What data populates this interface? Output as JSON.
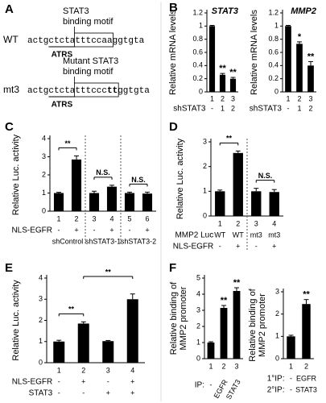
{
  "panel_labels": [
    "A",
    "B",
    "C",
    "D",
    "E",
    "F"
  ],
  "panel_a": {
    "sequences": [
      {
        "label": "WT",
        "motif_label": [
          "STAT3",
          "binding motif"
        ],
        "parts": [
          "actgctcta",
          "tttccaa",
          "ggtgta"
        ],
        "atrs": "ATRS"
      },
      {
        "label": "mt3",
        "motif_label": [
          "Mutant STAT3",
          "binding motif"
        ],
        "parts": [
          "actgctcta",
          "tttccc",
          "tt",
          "ggtgta"
        ],
        "atrs": "ATRS"
      }
    ]
  },
  "chart_data": [
    {
      "type": "bar",
      "title": "STAT3",
      "y_label": [
        "Relative mRNA levels"
      ],
      "categories": [
        "1",
        "2",
        "3"
      ],
      "values": [
        1,
        0.26,
        0.2
      ],
      "errors": [
        0.01,
        0.02,
        0.02
      ],
      "significance": [
        null,
        "**",
        "**"
      ],
      "rows": [
        {
          "label": "shSTAT3",
          "values": [
            "-",
            "1",
            "2"
          ]
        }
      ],
      "ylim": [
        0,
        1.2
      ],
      "yticks": [
        0,
        0.2,
        0.4,
        0.6,
        0.8,
        1,
        1.2
      ],
      "color": "#000000"
    },
    {
      "type": "bar",
      "title": "MMP2",
      "y_label": [
        "Relative mRNA levels"
      ],
      "categories": [
        "1",
        "2",
        "3"
      ],
      "values": [
        1,
        0.73,
        0.4
      ],
      "errors": [
        0.01,
        0.03,
        0.06
      ],
      "significance": [
        null,
        "*",
        "**"
      ],
      "rows": [
        {
          "label": "shSTAT3",
          "values": [
            "-",
            "1",
            "2"
          ]
        }
      ],
      "ylim": [
        0,
        1.2
      ],
      "yticks": [
        0,
        0.2,
        0.4,
        0.6,
        0.8,
        1,
        1.2
      ],
      "color": "#000000"
    },
    {
      "type": "bar",
      "y_label": [
        "Relative Luc. activity"
      ],
      "categories": [
        "1",
        "2",
        "3",
        "4",
        "5",
        "6"
      ],
      "values": [
        1,
        2.85,
        1,
        1.35,
        1,
        0.97
      ],
      "errors": [
        0.04,
        0.2,
        0.1,
        0.08,
        0.05,
        0.08
      ],
      "rows": [
        {
          "label": "NLS-EGFR",
          "values": [
            "-",
            "+",
            "-",
            "+",
            "-",
            "+"
          ]
        }
      ],
      "groups": [
        "shControl",
        "shSTAT3-1",
        "shSTAT3-2"
      ],
      "comparisons": [
        "**",
        "N.S.",
        "N.S."
      ],
      "ylim": [
        0,
        4
      ],
      "yticks": [
        0,
        1,
        2,
        3,
        4
      ],
      "color": "#000000"
    },
    {
      "type": "bar",
      "y_label": [
        "Relative Luc. activity"
      ],
      "categories": [
        "1",
        "2",
        "3",
        "4"
      ],
      "values": [
        1,
        2.55,
        1,
        0.97
      ],
      "errors": [
        0.05,
        0.08,
        0.12,
        0.1
      ],
      "rows": [
        {
          "label": "MMP2 Luc",
          "values": [
            "WT",
            "WT",
            "mt3",
            "mt3"
          ]
        },
        {
          "label": "NLS-EGFR",
          "values": [
            "-",
            "+",
            "-",
            "+"
          ]
        }
      ],
      "comparisons": [
        "**",
        "N.S."
      ],
      "ylim": [
        0,
        3
      ],
      "yticks": [
        0,
        1,
        2,
        3
      ],
      "color": "#000000"
    },
    {
      "type": "bar",
      "y_label": [
        "Relative Luc. activity"
      ],
      "categories": [
        "1",
        "2",
        "3",
        "4"
      ],
      "values": [
        1,
        1.85,
        1.02,
        3.0
      ],
      "errors": [
        0.06,
        0.08,
        0.03,
        0.25
      ],
      "rows": [
        {
          "label": "NLS-EGFR",
          "values": [
            "-",
            "+",
            "-",
            "+"
          ]
        },
        {
          "label": "STAT3",
          "values": [
            "-",
            "-",
            "+",
            "+"
          ]
        }
      ],
      "comparisons": [
        "**",
        "**"
      ],
      "ylim": [
        0,
        4
      ],
      "yticks": [
        0,
        1,
        2,
        3,
        4
      ],
      "color": "#000000"
    },
    {
      "type": "bar",
      "y_label": [
        "Relative binding of",
        "MMP2 promoter"
      ],
      "categories": [
        "1",
        "2",
        "3"
      ],
      "values": [
        1,
        3.15,
        4.2
      ],
      "errors": [
        0.05,
        0.15,
        0.2
      ],
      "significance": [
        null,
        "**",
        "**"
      ],
      "rows": [
        {
          "label": "IP:",
          "values": [
            "-",
            "EGFR",
            "STAT3"
          ]
        }
      ],
      "ylim": [
        0,
        5
      ],
      "yticks": [
        0,
        1,
        2,
        3,
        4,
        5
      ],
      "color": "#000000"
    },
    {
      "type": "bar",
      "y_label": [
        "Relative binding of",
        "MMP2 promoter"
      ],
      "categories": [
        "1",
        "2"
      ],
      "values": [
        1,
        2.45
      ],
      "errors": [
        0.05,
        0.2
      ],
      "significance": [
        null,
        "**"
      ],
      "rows": [
        {
          "label": "1°IP:",
          "values": [
            "-",
            "EGFR"
          ]
        },
        {
          "label": "2°IP:",
          "values": [
            "-",
            "STAT3"
          ]
        }
      ],
      "ylim": [
        0,
        3
      ],
      "yticks": [
        0,
        1,
        2,
        3
      ],
      "color": "#000000"
    }
  ]
}
